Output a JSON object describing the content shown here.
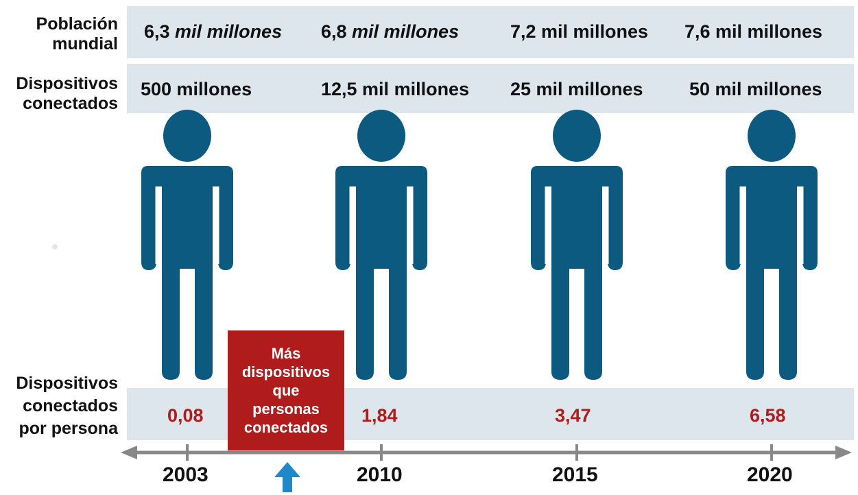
{
  "rows": {
    "population_label": "Población\nmundial",
    "devices_label": "Dispositivos\nconectados",
    "per_person_label": "Dispositivos\nconectados\npor persona"
  },
  "columns": [
    {
      "year": "2003",
      "population": "6,3 mil millones",
      "population_italic": true,
      "devices": "500 millones",
      "per_person": "0,08"
    },
    {
      "year": "2010",
      "population": "6,8 mil millones",
      "population_italic": true,
      "devices": "12,5 mil millones",
      "per_person": "1,84"
    },
    {
      "year": "2015",
      "population": "7,2 mil millones",
      "population_italic": false,
      "devices": "25 mil millones",
      "per_person": "3,47"
    },
    {
      "year": "2020",
      "population": "7,6 mil millones",
      "population_italic": false,
      "devices": "50 mil millones",
      "per_person": "6,58"
    }
  ],
  "callout": {
    "text": "Más\ndispositivos\nque\npersonas\nconectados"
  },
  "colors": {
    "band": "#dce6ec",
    "figure": "#0d5a80",
    "accent_red": "#b01c1c",
    "arrow_blue": "#1e88c8",
    "timeline_gray": "#888888"
  },
  "icons": {
    "person": "person-icon",
    "timeline": "double-arrow-icon",
    "marker": "up-arrow-icon"
  }
}
